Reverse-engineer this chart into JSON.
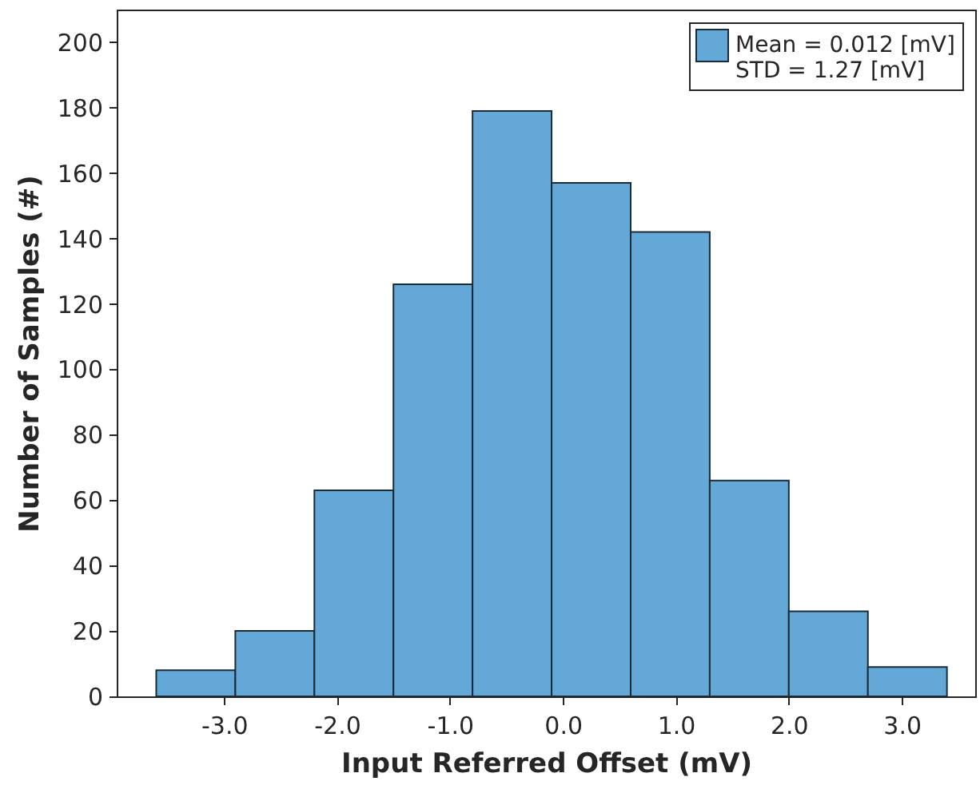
{
  "chart_data": {
    "type": "histogram",
    "xlabel": "Input Referred Offset (mV)",
    "ylabel": "Number of Samples (#)",
    "bins": [
      -3.6,
      -2.9,
      -2.2,
      -1.5,
      -0.8,
      -0.1,
      0.6,
      1.3,
      2.0,
      2.7,
      3.4
    ],
    "series": [
      {
        "name": "Mean = 0.012 [mV]\nSTD = 1.27 [mV]",
        "color": "#63a8d7",
        "values": [
          8,
          20,
          63,
          126,
          179,
          157,
          142,
          66,
          26,
          9
        ]
      }
    ],
    "xlim": [
      -3.95,
      3.65
    ],
    "xticks": [
      {
        "value": -3,
        "label": "-3.0"
      },
      {
        "value": -2,
        "label": "-2.0"
      },
      {
        "value": -1,
        "label": "-1.0"
      },
      {
        "value": 0,
        "label": "0.0"
      },
      {
        "value": 1,
        "label": "1.0"
      },
      {
        "value": 2,
        "label": "2.0"
      },
      {
        "value": 3,
        "label": "3.0"
      }
    ],
    "ylim": [
      0,
      210
    ],
    "yticks": [
      0,
      20,
      40,
      60,
      80,
      100,
      120,
      140,
      160,
      180,
      200
    ],
    "grid": false,
    "legend": "top right"
  }
}
